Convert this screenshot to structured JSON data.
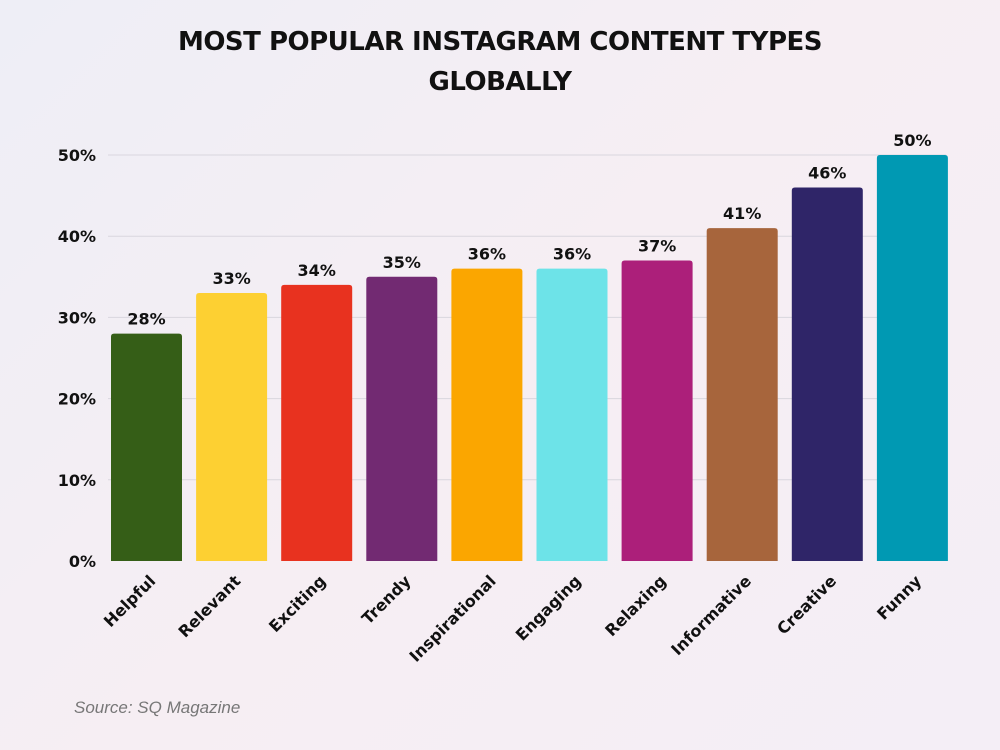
{
  "chart_data": {
    "type": "bar",
    "title_lines": [
      "MOST POPULAR INSTAGRAM CONTENT TYPES",
      "GLOBALLY"
    ],
    "categories": [
      "Helpful",
      "Relevant",
      "Exciting",
      "Trendy",
      "Inspirational",
      "Engaging",
      "Relaxing",
      "Informative",
      "Creative",
      "Funny"
    ],
    "values": [
      28,
      33,
      34,
      35,
      36,
      36,
      37,
      41,
      46,
      50
    ],
    "data_labels": [
      "28%",
      "33%",
      "34%",
      "35%",
      "36%",
      "36%",
      "37%",
      "41%",
      "46%",
      "50%"
    ],
    "colors": [
      "#355e17",
      "#fdd032",
      "#e8321f",
      "#722a72",
      "#fba600",
      "#6de3e8",
      "#ac1f7a",
      "#a7653c",
      "#2f2568",
      "#0099b3"
    ],
    "ylim": [
      0,
      50
    ],
    "yticks": [
      0,
      10,
      20,
      30,
      40,
      50
    ],
    "ytick_labels": [
      "0%",
      "10%",
      "20%",
      "30%",
      "40%",
      "50%"
    ],
    "grid": true,
    "xlabel": "",
    "ylabel": ""
  },
  "source": "Source: SQ Magazine"
}
